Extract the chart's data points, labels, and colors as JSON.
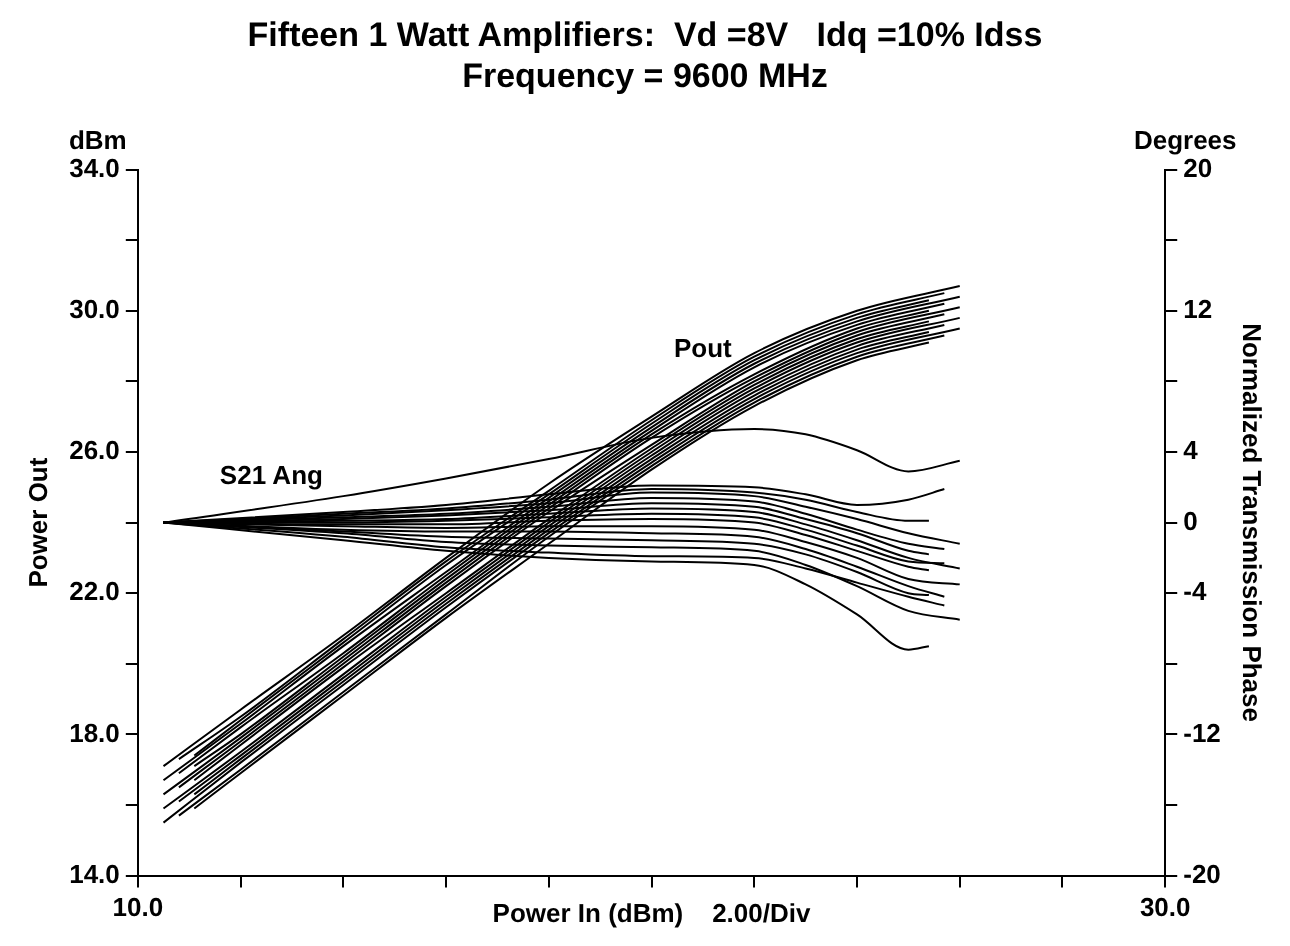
{
  "chart_data": {
    "type": "line",
    "title": "Fifteen 1 Watt Amplifiers:  Vd =8V   Idq =10% Idss",
    "subtitle": "Frequency = 9600 MHz",
    "xlabel": "Power In (dBm)    2.00/Div",
    "ylabel": "Power Out",
    "y2label": "Normalized Transmission Phase",
    "annotations": [
      "dBm",
      "Degrees",
      "Pout",
      "S21 Ang"
    ],
    "xlim": [
      10,
      30
    ],
    "xticks": [
      {
        "value": 10,
        "label": "10.0"
      },
      {
        "value": 12,
        "label": null
      },
      {
        "value": 14,
        "label": null
      },
      {
        "value": 16,
        "label": null
      },
      {
        "value": 18,
        "label": null
      },
      {
        "value": 20,
        "label": null
      },
      {
        "value": 22,
        "label": null
      },
      {
        "value": 24,
        "label": null
      },
      {
        "value": 26,
        "label": null
      },
      {
        "value": 28,
        "label": null
      },
      {
        "value": 30,
        "label": "30.0"
      }
    ],
    "ylim": [
      14,
      34
    ],
    "yticks": [
      {
        "value": 14,
        "label": "14.0"
      },
      {
        "value": 16,
        "label": null
      },
      {
        "value": 18,
        "label": "18.0"
      },
      {
        "value": 20,
        "label": null
      },
      {
        "value": 22,
        "label": "22.0"
      },
      {
        "value": 24,
        "label": null
      },
      {
        "value": 26,
        "label": "26.0"
      },
      {
        "value": 28,
        "label": null
      },
      {
        "value": 30,
        "label": "30.0"
      },
      {
        "value": 32,
        "label": null
      },
      {
        "value": 34,
        "label": "34.0"
      }
    ],
    "y2lim": [
      -20,
      20
    ],
    "y2ticks": [
      -20,
      {
        "value": -16,
        "label": null
      },
      -12,
      {
        "value": -8,
        "label": null
      },
      -4,
      0,
      4,
      {
        "value": 8,
        "label": null
      },
      12,
      {
        "value": 16,
        "label": null
      },
      20
    ],
    "grid": false,
    "legend": false,
    "series": [
      {
        "color": "#000000",
        "x": [
          10.5,
          12,
          14,
          16,
          18,
          20,
          22,
          24,
          26
        ],
        "values": [
          17.1,
          18.7,
          20.8,
          23.0,
          25.1,
          27.0,
          28.8,
          30.0,
          30.7
        ]
      },
      {
        "color": "#000000",
        "x": [
          10.8,
          12,
          14,
          16,
          18,
          20,
          22,
          24,
          25.7
        ],
        "values": [
          17.3,
          18.5,
          20.7,
          22.9,
          24.9,
          26.9,
          28.7,
          29.9,
          30.5
        ]
      },
      {
        "color": "#000000",
        "x": [
          11.1,
          12,
          14,
          16,
          18,
          20,
          22,
          24,
          25.4
        ],
        "values": [
          17.4,
          18.4,
          20.6,
          22.8,
          24.8,
          26.8,
          28.6,
          29.8,
          30.3
        ]
      },
      {
        "color": "#000000",
        "x": [
          10.5,
          12,
          14,
          16,
          18,
          20,
          22,
          24,
          26
        ],
        "values": [
          16.7,
          18.3,
          20.5,
          22.6,
          24.7,
          26.7,
          28.5,
          29.7,
          30.4
        ]
      },
      {
        "color": "#000000",
        "x": [
          10.8,
          12,
          14,
          16,
          18,
          20,
          22,
          24,
          25.7
        ],
        "values": [
          16.9,
          18.2,
          20.3,
          22.5,
          24.6,
          26.6,
          28.4,
          29.6,
          30.2
        ]
      },
      {
        "color": "#000000",
        "x": [
          11.1,
          12,
          14,
          16,
          18,
          20,
          22,
          24,
          25.4
        ],
        "values": [
          17.1,
          18.0,
          20.2,
          22.4,
          24.5,
          26.5,
          28.2,
          29.5,
          30.0
        ]
      },
      {
        "color": "#000000",
        "x": [
          10.5,
          12,
          14,
          16,
          18,
          20,
          22,
          24,
          26
        ],
        "values": [
          16.3,
          17.9,
          20.1,
          22.3,
          24.4,
          26.4,
          28.1,
          29.4,
          30.1
        ]
      },
      {
        "color": "#000000",
        "x": [
          10.8,
          12,
          14,
          16,
          18,
          20,
          22,
          24,
          25.7
        ],
        "values": [
          16.5,
          17.8,
          20.0,
          22.2,
          24.3,
          26.2,
          28.0,
          29.3,
          29.9
        ]
      },
      {
        "color": "#000000",
        "x": [
          11.1,
          12,
          14,
          16,
          18,
          20,
          22,
          24,
          25.4
        ],
        "values": [
          16.7,
          17.7,
          19.9,
          22.0,
          24.1,
          26.1,
          27.9,
          29.2,
          29.7
        ]
      },
      {
        "color": "#000000",
        "x": [
          10.5,
          12,
          14,
          16,
          18,
          20,
          22,
          24,
          26
        ],
        "values": [
          15.9,
          17.5,
          19.7,
          21.9,
          24.0,
          26.0,
          27.8,
          29.1,
          29.8
        ]
      },
      {
        "color": "#000000",
        "x": [
          10.8,
          12,
          14,
          16,
          18,
          20,
          22,
          24,
          25.7
        ],
        "values": [
          16.1,
          17.4,
          19.6,
          21.8,
          23.9,
          25.9,
          27.7,
          29.0,
          29.6
        ]
      },
      {
        "color": "#000000",
        "x": [
          11.1,
          12,
          14,
          16,
          18,
          20,
          22,
          24,
          25.4
        ],
        "values": [
          16.3,
          17.3,
          19.5,
          21.7,
          23.8,
          25.8,
          27.6,
          28.9,
          29.4
        ]
      },
      {
        "color": "#000000",
        "x": [
          10.5,
          12,
          14,
          16,
          18,
          20,
          22,
          24,
          26
        ],
        "values": [
          15.5,
          17.2,
          19.4,
          21.6,
          23.7,
          25.7,
          27.5,
          28.8,
          29.5
        ]
      },
      {
        "color": "#000000",
        "x": [
          10.8,
          12,
          14,
          16,
          18,
          20,
          22,
          24,
          25.7
        ],
        "values": [
          15.7,
          17.0,
          19.2,
          21.4,
          23.6,
          25.6,
          27.4,
          28.7,
          29.3
        ]
      },
      {
        "color": "#000000",
        "x": [
          11.1,
          12,
          14,
          16,
          18,
          20,
          22,
          24,
          25.4
        ],
        "values": [
          15.9,
          16.9,
          19.1,
          21.3,
          23.4,
          25.5,
          27.3,
          28.6,
          29.1
        ]
      },
      {
        "color": "#000000",
        "axis": "y2",
        "x": [
          10.5,
          14,
          16,
          18,
          20,
          22,
          23,
          24,
          25,
          26
        ],
        "values": [
          0,
          1.5,
          2.5,
          3.6,
          4.8,
          5.3,
          5.0,
          4.1,
          2.9,
          3.5
        ]
      },
      {
        "color": "#000000",
        "axis": "y2",
        "x": [
          10.5,
          14,
          16,
          18,
          20,
          22,
          23,
          24,
          25,
          25.7
        ],
        "values": [
          0,
          0.6,
          1.0,
          1.6,
          2.1,
          2.0,
          1.6,
          1.0,
          1.3,
          1.9
        ]
      },
      {
        "color": "#000000",
        "axis": "y2",
        "x": [
          10.5,
          14,
          16,
          18,
          20,
          22,
          23,
          24,
          25,
          25.4
        ],
        "values": [
          0,
          0.5,
          0.8,
          1.3,
          1.9,
          1.7,
          1.3,
          0.6,
          0.1,
          0.1
        ]
      },
      {
        "color": "#000000",
        "axis": "y2",
        "x": [
          10.5,
          14,
          16,
          18,
          20,
          22,
          23,
          24,
          25,
          26
        ],
        "values": [
          0,
          0.4,
          0.7,
          1.1,
          1.7,
          1.5,
          0.9,
          0.2,
          -0.6,
          -1.2
        ]
      },
      {
        "color": "#000000",
        "axis": "y2",
        "x": [
          10.5,
          14,
          16,
          18,
          20,
          22,
          23,
          24,
          25,
          25.7
        ],
        "values": [
          0,
          0.3,
          0.5,
          0.9,
          1.4,
          1.2,
          0.5,
          -0.4,
          -1.2,
          -1.5
        ]
      },
      {
        "color": "#000000",
        "axis": "y2",
        "x": [
          10.5,
          14,
          16,
          18,
          20,
          22,
          23,
          24,
          25,
          25.4
        ],
        "values": [
          0,
          0.2,
          0.4,
          0.7,
          1.1,
          0.9,
          0.2,
          -0.6,
          -1.6,
          -1.8
        ]
      },
      {
        "color": "#000000",
        "axis": "y2",
        "x": [
          10.5,
          14,
          16,
          18,
          20,
          22,
          23,
          24,
          25,
          26
        ],
        "values": [
          0,
          0.1,
          0.2,
          0.5,
          0.8,
          0.6,
          -0.1,
          -1.0,
          -2.0,
          -2.6
        ]
      },
      {
        "color": "#000000",
        "axis": "y2",
        "x": [
          10.5,
          14,
          16,
          18,
          20,
          22,
          23,
          24,
          25,
          25.7
        ],
        "values": [
          0,
          0,
          0.1,
          0.3,
          0.5,
          0.3,
          -0.4,
          -1.3,
          -2.2,
          -2.3
        ]
      },
      {
        "color": "#000000",
        "axis": "y2",
        "x": [
          10.5,
          14,
          16,
          18,
          20,
          22,
          23,
          24,
          25,
          25.4
        ],
        "values": [
          0,
          -0.1,
          -0.1,
          0.1,
          0.2,
          0,
          -0.7,
          -1.6,
          -2.5,
          -2.7
        ]
      },
      {
        "color": "#000000",
        "axis": "y2",
        "x": [
          10.5,
          14,
          16,
          18,
          20,
          22,
          23,
          24,
          25,
          26
        ],
        "values": [
          0,
          -0.2,
          -0.3,
          -0.2,
          -0.2,
          -0.4,
          -1.1,
          -2.0,
          -3.2,
          -3.5
        ]
      },
      {
        "color": "#000000",
        "axis": "y2",
        "x": [
          10.5,
          14,
          16,
          18,
          20,
          22,
          23,
          24,
          25,
          25.7
        ],
        "values": [
          0,
          -0.4,
          -0.5,
          -0.5,
          -0.6,
          -0.8,
          -1.5,
          -2.5,
          -3.6,
          -4.2
        ]
      },
      {
        "color": "#000000",
        "axis": "y2",
        "x": [
          10.5,
          14,
          16,
          18,
          20,
          22,
          23,
          24,
          25,
          25.4
        ],
        "values": [
          0,
          -0.5,
          -0.8,
          -0.9,
          -1.0,
          -1.2,
          -1.8,
          -2.8,
          -4.0,
          -4.1
        ]
      },
      {
        "color": "#000000",
        "axis": "y2",
        "x": [
          10.5,
          14,
          16,
          18,
          20,
          22,
          23,
          24,
          25,
          26
        ],
        "values": [
          0,
          -0.6,
          -1.1,
          -1.3,
          -1.4,
          -1.6,
          -2.4,
          -3.6,
          -5.0,
          -5.5
        ]
      },
      {
        "color": "#000000",
        "axis": "y2",
        "x": [
          10.5,
          14,
          16,
          18,
          20,
          22,
          23,
          24,
          25,
          25.7
        ],
        "values": [
          0,
          -0.8,
          -1.4,
          -1.7,
          -1.9,
          -2.0,
          -2.6,
          -3.4,
          -4.2,
          -4.7
        ]
      },
      {
        "color": "#000000",
        "axis": "y2",
        "x": [
          10.5,
          14,
          16,
          18,
          20,
          22,
          23,
          24,
          25,
          25.4
        ],
        "values": [
          0,
          -1.0,
          -1.6,
          -2.0,
          -2.2,
          -2.4,
          -3.5,
          -5.2,
          -7.2,
          -7.0
        ]
      }
    ]
  }
}
